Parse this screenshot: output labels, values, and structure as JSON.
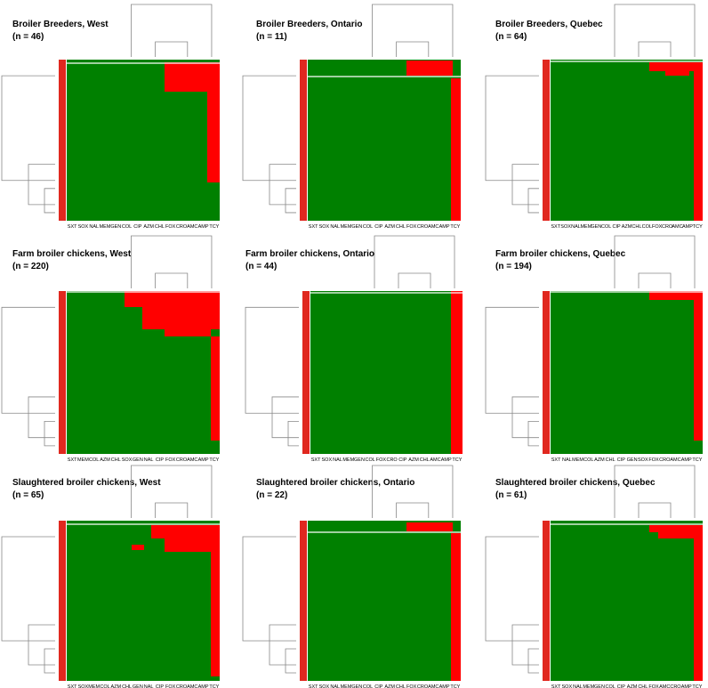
{
  "panels": [
    {
      "title": "Broiler Breeders, West",
      "n": "(n = 46)",
      "columns": [
        "SXT",
        "SOX",
        "NAL",
        "MEM",
        "GEN",
        "COL",
        "CIP",
        "AZM",
        "CHL",
        "FOX",
        "CRO",
        "AMC",
        "AMP",
        "TCY"
      ]
    },
    {
      "title": "Broiler Breeders, Ontario",
      "n": "(n = 11)",
      "columns": [
        "SXT",
        "SOX",
        "NAL",
        "MEM",
        "GEN",
        "COL",
        "CIP",
        "AZM",
        "CHL",
        "FOX",
        "CRO",
        "AMC",
        "AMP",
        "TCY"
      ]
    },
    {
      "title": "Broiler Breeders, Quebec",
      "n": "(n = 64)",
      "columns": [
        "SXT",
        "SOX",
        "NAL",
        "MEM",
        "GEN",
        "COL",
        "CIP",
        "AZM",
        "CHL",
        "COL",
        "FOX",
        "CRO",
        "AMC",
        "AMP",
        "TCY"
      ]
    },
    {
      "title": "Farm broiler chickens, West",
      "n": "(n = 220)",
      "columns": [
        "SXT",
        "MEM",
        "COL",
        "AZM",
        "CHL",
        "SOX",
        "GEN",
        "NAL",
        "CIP",
        "FOX",
        "CRO",
        "AMC",
        "AMP",
        "TCY"
      ]
    },
    {
      "title": "Farm broiler chickens, Ontario",
      "n": "(n = 44)",
      "columns": [
        "SXT",
        "SOX",
        "NAL",
        "MEM",
        "GEN",
        "COL",
        "FOX",
        "CRO",
        "CIP",
        "AZM",
        "CHL",
        "AMC",
        "AMP",
        "TCY"
      ]
    },
    {
      "title": "Farm broiler chickens, Quebec",
      "n": "(n = 194)",
      "columns": [
        "SXT",
        "NAL",
        "MEM",
        "COL",
        "AZM",
        "CHL",
        "CIP",
        "GEN",
        "SOX",
        "FOX",
        "CRO",
        "AMC",
        "AMP",
        "TCY"
      ]
    },
    {
      "title": "Slaughtered broiler chickens, West",
      "n": "(n = 65)",
      "columns": [
        "SXT",
        "SOX",
        "MEM",
        "COL",
        "AZM",
        "CHL",
        "GEN",
        "NAL",
        "CIP",
        "FOX",
        "CRO",
        "AMC",
        "AMP",
        "TCY"
      ]
    },
    {
      "title": "Slaughtered broiler chickens, Ontario",
      "n": "(n = 22)",
      "columns": [
        "SXT",
        "SOX",
        "NAL",
        "MEM",
        "GEN",
        "COL",
        "CIP",
        "AZM",
        "CHL",
        "FOX",
        "CRO",
        "AMC",
        "AMP",
        "TCY"
      ]
    },
    {
      "title": "Slaughtered broiler chickens, Quebec",
      "n": "(n = 61)",
      "columns": [
        "SXT",
        "SOX",
        "NAL",
        "MEM",
        "GEN",
        "COL",
        "CIP",
        "AZM",
        "CHL",
        "FOX",
        "AMC",
        "CRO",
        "AMP",
        "TCY"
      ]
    }
  ]
}
